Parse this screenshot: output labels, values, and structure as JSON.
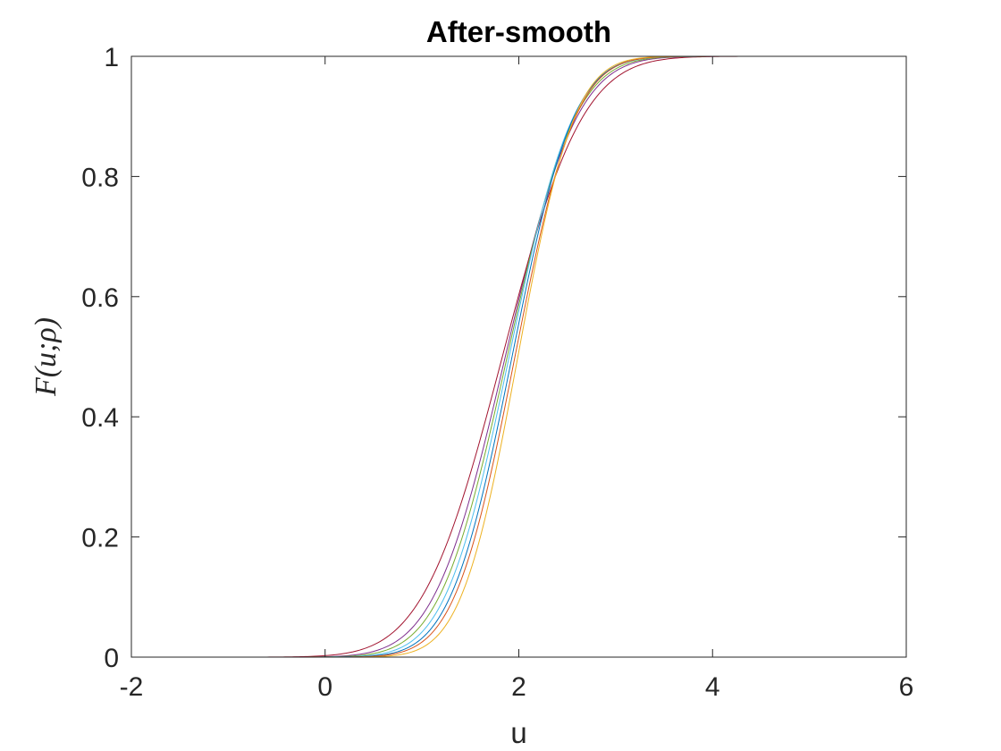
{
  "chart_data": {
    "type": "line",
    "title": "After-smooth",
    "xlabel": "u",
    "ylabel": "F(u;ρ)",
    "xlim": [
      -2,
      6
    ],
    "ylim": [
      0,
      1
    ],
    "xticks": [
      -2,
      0,
      2,
      4,
      6
    ],
    "yticks": [
      0,
      0.2,
      0.4,
      0.6,
      0.8,
      1
    ],
    "xtick_labels": [
      "-2",
      "0",
      "2",
      "4",
      "6"
    ],
    "ytick_labels": [
      "0",
      "0.2",
      "0.4",
      "0.6",
      "0.8",
      "1"
    ],
    "grid": false,
    "legend": "none",
    "x_range": [
      -1.6,
      5.85
    ],
    "series": [
      {
        "color": "#7E2F8E",
        "mu": 1.86,
        "sigma": 0.58,
        "values": [
          [
            -1.6,
            0.0
          ],
          [
            0.0,
            0.0007
          ],
          [
            0.5,
            0.0098
          ],
          [
            1.0,
            0.0705
          ],
          [
            1.5,
            0.2664
          ],
          [
            2.0,
            0.5962
          ],
          [
            2.5,
            0.8681
          ],
          [
            3.0,
            0.9743
          ],
          [
            3.5,
            0.9971
          ],
          [
            4.0,
            0.9998
          ],
          [
            5.85,
            1.0
          ]
        ]
      },
      {
        "color": "#A2142F",
        "mu": 1.83,
        "sigma": 0.65,
        "values": [
          [
            -1.6,
            0.0
          ],
          [
            0.0,
            0.0024
          ],
          [
            0.5,
            0.0204
          ],
          [
            1.0,
            0.1007
          ],
          [
            1.5,
            0.3061
          ],
          [
            2.0,
            0.6031
          ],
          [
            2.5,
            0.8495
          ],
          [
            3.0,
            0.9638
          ],
          [
            3.5,
            0.9947
          ],
          [
            4.0,
            0.9995
          ],
          [
            5.85,
            1.0
          ]
        ]
      },
      {
        "color": "#77AC30",
        "mu": 1.88,
        "sigma": 0.55,
        "values": [
          [
            -1.6,
            0.0
          ],
          [
            0.0,
            0.0003
          ],
          [
            0.5,
            0.0062
          ],
          [
            1.0,
            0.055
          ],
          [
            1.5,
            0.2467
          ],
          [
            2.0,
            0.5867
          ],
          [
            2.5,
            0.87
          ],
          [
            3.0,
            0.9791
          ],
          [
            3.5,
            0.9985
          ],
          [
            4.0,
            0.9999
          ],
          [
            5.85,
            1.0
          ]
        ]
      },
      {
        "color": "#4DBEEE",
        "mu": 1.9,
        "sigma": 0.52,
        "values": [
          [
            -1.6,
            0.0
          ],
          [
            0.0,
            0.0001
          ],
          [
            0.5,
            0.0036
          ],
          [
            1.0,
            0.0417
          ],
          [
            1.5,
            0.2207
          ],
          [
            2.0,
            0.5766
          ],
          [
            2.5,
            0.8756
          ],
          [
            3.0,
            0.9837
          ],
          [
            3.5,
            0.9992
          ],
          [
            4.0,
            1.0
          ],
          [
            5.85,
            1.0
          ]
        ]
      },
      {
        "color": "#0072BD",
        "mu": 1.93,
        "sigma": 0.5,
        "values": [
          [
            -1.6,
            0.0
          ],
          [
            0.0,
            0.0001
          ],
          [
            0.5,
            0.0021
          ],
          [
            1.0,
            0.0314
          ],
          [
            1.5,
            0.1949
          ],
          [
            2.0,
            0.5557
          ],
          [
            2.5,
            0.8729
          ],
          [
            3.0,
            0.9838
          ],
          [
            3.5,
            0.9992
          ],
          [
            4.0,
            1.0
          ],
          [
            5.85,
            1.0
          ]
        ]
      },
      {
        "color": "#D95319",
        "mu": 1.96,
        "sigma": 0.49,
        "values": [
          [
            -1.6,
            0.0
          ],
          [
            0.0,
            0.0
          ],
          [
            0.5,
            0.0015
          ],
          [
            1.0,
            0.0253
          ],
          [
            1.5,
            0.1742
          ],
          [
            2.0,
            0.5327
          ],
          [
            2.5,
            0.8643
          ],
          [
            3.0,
            0.9832
          ],
          [
            3.5,
            0.9992
          ],
          [
            4.0,
            1.0
          ],
          [
            5.85,
            1.0
          ]
        ]
      },
      {
        "color": "#EDB120",
        "mu": 1.99,
        "sigma": 0.46,
        "values": [
          [
            -1.6,
            0.0
          ],
          [
            0.0,
            0.0
          ],
          [
            0.5,
            0.0006
          ],
          [
            1.0,
            0.0158
          ],
          [
            1.5,
            0.1442
          ],
          [
            2.0,
            0.5087
          ],
          [
            2.5,
            0.8678
          ],
          [
            3.0,
            0.9859
          ],
          [
            3.5,
            0.9995
          ],
          [
            4.0,
            1.0
          ],
          [
            5.85,
            1.0
          ]
        ]
      }
    ]
  }
}
